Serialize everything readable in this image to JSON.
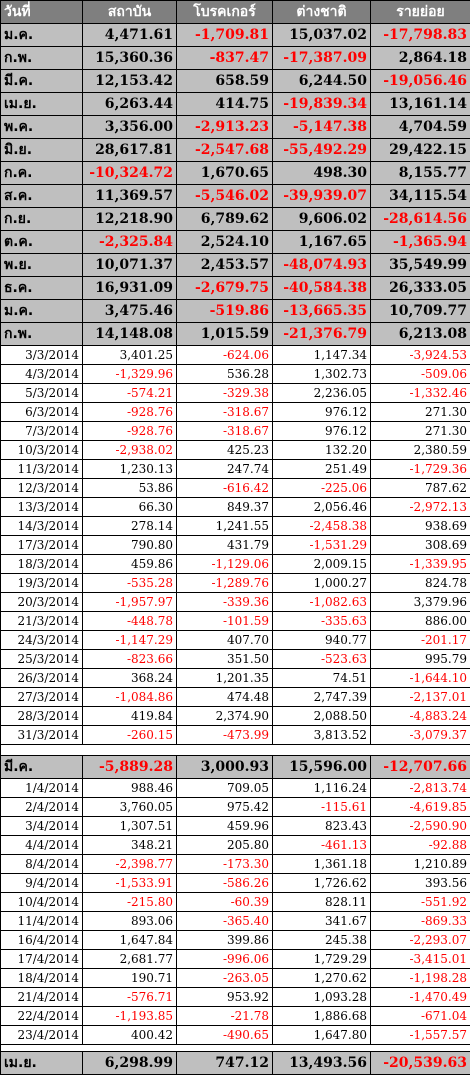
{
  "headers": [
    "วันที่",
    "สถาบัน",
    "โบรคเกอร์",
    "ต่างชาติ",
    "รายย่อย"
  ],
  "monthly": [
    [
      "ม.ค.",
      "4,471.61",
      "-1,709.81",
      "15,037.02",
      "-17,798.83"
    ],
    [
      "ก.พ.",
      "15,360.36",
      "-837.47",
      "-17,387.09",
      "2,864.18"
    ],
    [
      "มี.ค.",
      "12,153.42",
      "658.59",
      "6,244.50",
      "-19,056.46"
    ],
    [
      "เม.ย.",
      "6,263.44",
      "414.75",
      "-19,839.34",
      "13,161.14"
    ],
    [
      "พ.ค.",
      "3,356.00",
      "-2,913.23",
      "-5,147.38",
      "4,704.59"
    ],
    [
      "มิ.ย.",
      "28,617.81",
      "-2,547.68",
      "-55,492.29",
      "29,422.15"
    ],
    [
      "ก.ค.",
      "-10,324.72",
      "1,670.65",
      "498.30",
      "8,155.77"
    ],
    [
      "ส.ค.",
      "11,369.57",
      "-5,546.02",
      "-39,939.07",
      "34,115.54"
    ],
    [
      "ก.ย.",
      "12,218.90",
      "6,789.62",
      "9,606.02",
      "-28,614.56"
    ],
    [
      "ต.ค.",
      "-2,325.84",
      "2,524.10",
      "1,167.65",
      "-1,365.94"
    ],
    [
      "พ.ย.",
      "10,071.37",
      "2,453.57",
      "-48,074.93",
      "35,549.99"
    ],
    [
      "ธ.ค.",
      "16,931.09",
      "-2,679.75",
      "-40,584.38",
      "26,333.05"
    ],
    [
      "ม.ค.",
      "3,475.46",
      "-519.86",
      "-13,665.35",
      "10,709.77"
    ],
    [
      "ก.พ.",
      "14,148.08",
      "1,015.59",
      "-21,376.79",
      "6,213.08"
    ]
  ],
  "march_days": [
    [
      "3/3/2014",
      "3,401.25",
      "-624.06",
      "1,147.34",
      "-3,924.53"
    ],
    [
      "4/3/2014",
      "-1,329.96",
      "536.28",
      "1,302.73",
      "-509.06"
    ],
    [
      "5/3/2014",
      "-574.21",
      "-329.38",
      "2,236.05",
      "-1,332.46"
    ],
    [
      "6/3/2014",
      "-928.76",
      "-318.67",
      "976.12",
      "271.30"
    ],
    [
      "7/3/2014",
      "-928.76",
      "-318.67",
      "976.12",
      "271.30"
    ],
    [
      "10/3/2014",
      "-2,938.02",
      "425.23",
      "132.20",
      "2,380.59"
    ],
    [
      "11/3/2014",
      "1,230.13",
      "247.74",
      "251.49",
      "-1,729.36"
    ],
    [
      "12/3/2014",
      "53.86",
      "-616.42",
      "-225.06",
      "787.62"
    ],
    [
      "13/3/2014",
      "66.30",
      "849.37",
      "2,056.46",
      "-2,972.13"
    ],
    [
      "14/3/2014",
      "278.14",
      "1,241.55",
      "-2,458.38",
      "938.69"
    ],
    [
      "17/3/2014",
      "790.80",
      "431.79",
      "-1,531.29",
      "308.69"
    ],
    [
      "18/3/2014",
      "459.86",
      "-1,129.06",
      "2,009.15",
      "-1,339.95"
    ],
    [
      "19/3/2014",
      "-535.28",
      "-1,289.76",
      "1,000.27",
      "824.78"
    ],
    [
      "20/3/2014",
      "-1,957.97",
      "-339.36",
      "-1,082.63",
      "3,379.96"
    ],
    [
      "21/3/2014",
      "-448.78",
      "-101.59",
      "-335.63",
      "886.00"
    ],
    [
      "24/3/2014",
      "-1,147.29",
      "407.70",
      "940.77",
      "-201.17"
    ],
    [
      "25/3/2014",
      "-823.66",
      "351.50",
      "-523.63",
      "995.79"
    ],
    [
      "26/3/2014",
      "368.24",
      "1,201.35",
      "74.51",
      "-1,644.10"
    ],
    [
      "27/3/2014",
      "-1,084.86",
      "474.48",
      "2,747.39",
      "-2,137.01"
    ],
    [
      "28/3/2014",
      "419.84",
      "2,374.90",
      "2,088.50",
      "-4,883.24"
    ],
    [
      "31/3/2014",
      "-260.15",
      "-473.99",
      "3,813.52",
      "-3,079.37"
    ]
  ],
  "march_total": [
    "มี.ค.",
    "-5,889.28",
    "3,000.93",
    "15,596.00",
    "-12,707.66"
  ],
  "april_days": [
    [
      "1/4/2014",
      "988.46",
      "709.05",
      "1,116.24",
      "-2,813.74"
    ],
    [
      "2/4/2014",
      "3,760.05",
      "975.42",
      "-115.61",
      "-4,619.85"
    ],
    [
      "3/4/2014",
      "1,307.51",
      "459.96",
      "823.43",
      "-2,590.90"
    ],
    [
      "4/4/2014",
      "348.21",
      "205.80",
      "-461.13",
      "-92.88"
    ],
    [
      "8/4/2014",
      "-2,398.77",
      "-173.30",
      "1,361.18",
      "1,210.89"
    ],
    [
      "9/4/2014",
      "-1,533.91",
      "-586.26",
      "1,726.62",
      "393.56"
    ],
    [
      "10/4/2014",
      "-215.80",
      "-60.39",
      "828.11",
      "-551.92"
    ],
    [
      "11/4/2014",
      "893.06",
      "-365.40",
      "341.67",
      "-869.33"
    ],
    [
      "16/4/2014",
      "1,647.84",
      "399.86",
      "245.38",
      "-2,293.07"
    ],
    [
      "17/4/2014",
      "2,681.77",
      "-996.06",
      "1,729.29",
      "-3,415.01"
    ],
    [
      "18/4/2014",
      "190.71",
      "-263.05",
      "1,270.62",
      "-1,198.28"
    ],
    [
      "21/4/2014",
      "-576.71",
      "953.92",
      "1,093.28",
      "-1,470.49"
    ],
    [
      "22/4/2014",
      "-1,193.85",
      "-21.78",
      "1,886.68",
      "-671.04"
    ],
    [
      "23/4/2014",
      "400.42",
      "-490.65",
      "1,647.80",
      "-1,557.57"
    ]
  ],
  "april_total": [
    "เม.ย.",
    "6,298.99",
    "747.12",
    "13,493.56",
    "-20,539.63"
  ]
}
